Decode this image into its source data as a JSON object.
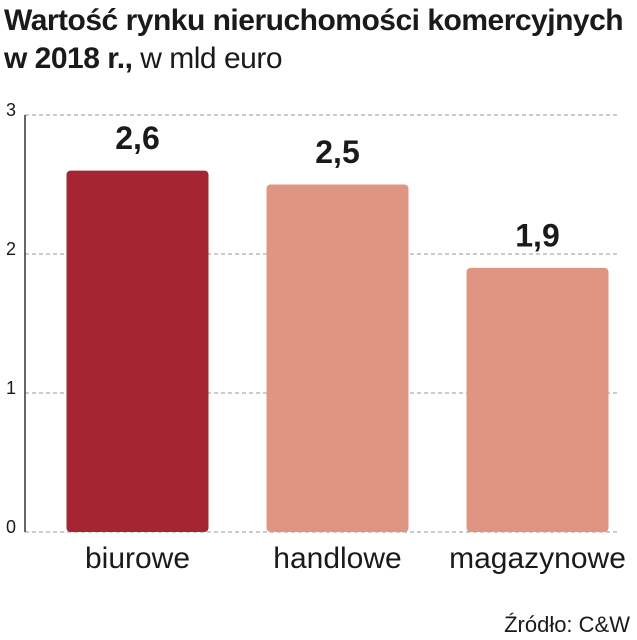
{
  "chart_data": {
    "type": "bar",
    "title": "Wartość rynku nieruchomości komercyjnych w 2018 r.,",
    "subtitle": "w mld euro",
    "categories": [
      "biurowe",
      "handlowe",
      "magazynowe"
    ],
    "values": [
      2.6,
      2.5,
      1.9
    ],
    "value_labels": [
      "2,6",
      "2,5",
      "1,9"
    ],
    "colors": [
      "#a52632",
      "#e09582",
      "#e09582"
    ],
    "ylim": [
      0,
      3
    ],
    "yticks": [
      0,
      1,
      2,
      3
    ],
    "grid": true,
    "source": "Źródło: C&W"
  }
}
